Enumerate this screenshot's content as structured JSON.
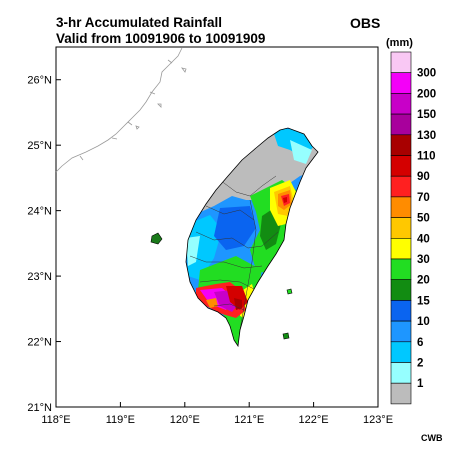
{
  "title_line1": "3-hr Accumulated Rainfall",
  "title_line2": "Valid from 10091906 to 10091909",
  "obs_label": "OBS",
  "units": "(mm)",
  "credit": "CWB",
  "map": {
    "lon_range": [
      118,
      123
    ],
    "lat_range": [
      21,
      26.5
    ],
    "lon_ticks": [
      {
        "value": 118,
        "label": "118°E"
      },
      {
        "value": 119,
        "label": "119°E"
      },
      {
        "value": 120,
        "label": "120°E"
      },
      {
        "value": 121,
        "label": "121°E"
      },
      {
        "value": 122,
        "label": "122°E"
      },
      {
        "value": 123,
        "label": "123°E"
      }
    ],
    "lat_ticks": [
      {
        "value": 21,
        "label": "21°N"
      },
      {
        "value": 22,
        "label": "22°N"
      },
      {
        "value": 23,
        "label": "23°N"
      },
      {
        "value": 24,
        "label": "24°N"
      },
      {
        "value": 25,
        "label": "25°N"
      },
      {
        "value": 26,
        "label": "26°N"
      }
    ]
  },
  "legend": [
    {
      "label": "300",
      "color": "#f9c8f4"
    },
    {
      "label": "200",
      "color": "#f400f8"
    },
    {
      "label": "150",
      "color": "#c800c8"
    },
    {
      "label": "130",
      "color": "#a8009c"
    },
    {
      "label": "110",
      "color": "#a80000"
    },
    {
      "label": "90",
      "color": "#d40000"
    },
    {
      "label": "70",
      "color": "#ff2020"
    },
    {
      "label": "50",
      "color": "#ff8c00"
    },
    {
      "label": "40",
      "color": "#ffc800"
    },
    {
      "label": "30",
      "color": "#ffff00"
    },
    {
      "label": "20",
      "color": "#22dd22"
    },
    {
      "label": "15",
      "color": "#128c12"
    },
    {
      "label": "10",
      "color": "#0a64f0"
    },
    {
      "label": "6",
      "color": "#1e96ff"
    },
    {
      "label": "2",
      "color": "#00c8ff"
    },
    {
      "label": "1",
      "color": "#96ffff"
    },
    {
      "label": "",
      "color": "#bcbcbc"
    }
  ]
}
